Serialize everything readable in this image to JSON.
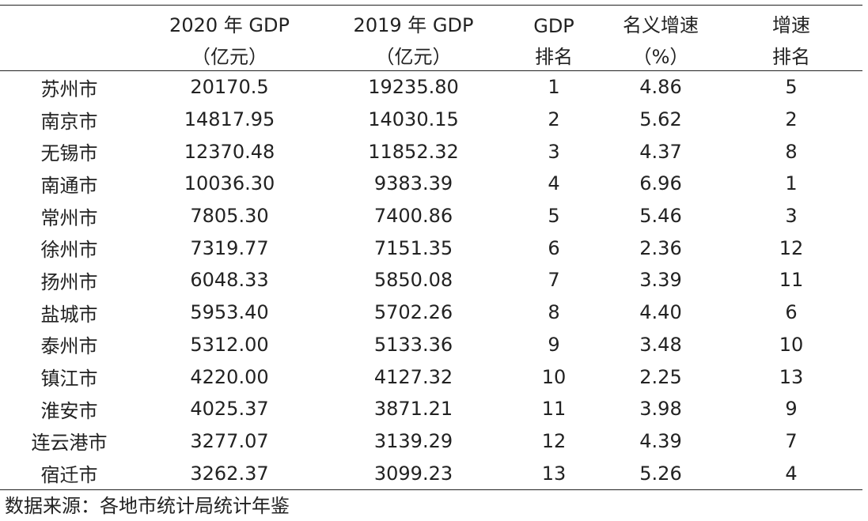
{
  "header": {
    "row1": [
      "",
      "2020 年 GDP",
      "2019 年 GDP",
      "GDP",
      "名义增速",
      "增速"
    ],
    "row2": [
      "",
      "（亿元）",
      "（亿元）",
      "排名",
      "（%）",
      "排名"
    ]
  },
  "rows": [
    [
      "苏州市",
      "20170.5",
      "19235.80",
      "1",
      "4.86",
      "5"
    ],
    [
      "南京市",
      "14817.95",
      "14030.15",
      "2",
      "5.62",
      "2"
    ],
    [
      "无锡市",
      "12370.48",
      "11852.32",
      "3",
      "4.37",
      "8"
    ],
    [
      "南通市",
      "10036.30",
      "9383.39",
      "4",
      "6.96",
      "1"
    ],
    [
      "常州市",
      "7805.30",
      "7400.86",
      "5",
      "5.46",
      "3"
    ],
    [
      "徐州市",
      "7319.77",
      "7151.35",
      "6",
      "2.36",
      "12"
    ],
    [
      "扬州市",
      "6048.33",
      "5850.08",
      "7",
      "3.39",
      "11"
    ],
    [
      "盐城市",
      "5953.40",
      "5702.26",
      "8",
      "4.40",
      "6"
    ],
    [
      "泰州市",
      "5312.00",
      "5133.36",
      "9",
      "3.48",
      "10"
    ],
    [
      "镇江市",
      "4220.00",
      "4127.32",
      "10",
      "2.25",
      "13"
    ],
    [
      "淮安市",
      "4025.37",
      "3871.21",
      "11",
      "3.98",
      "9"
    ],
    [
      "连云港市",
      "3277.07",
      "3139.29",
      "12",
      "4.39",
      "7"
    ],
    [
      "宿迁市",
      "3262.37",
      "3099.23",
      "13",
      "5.26",
      "4"
    ]
  ],
  "source": "数据来源：各地市统计局统计年鉴"
}
